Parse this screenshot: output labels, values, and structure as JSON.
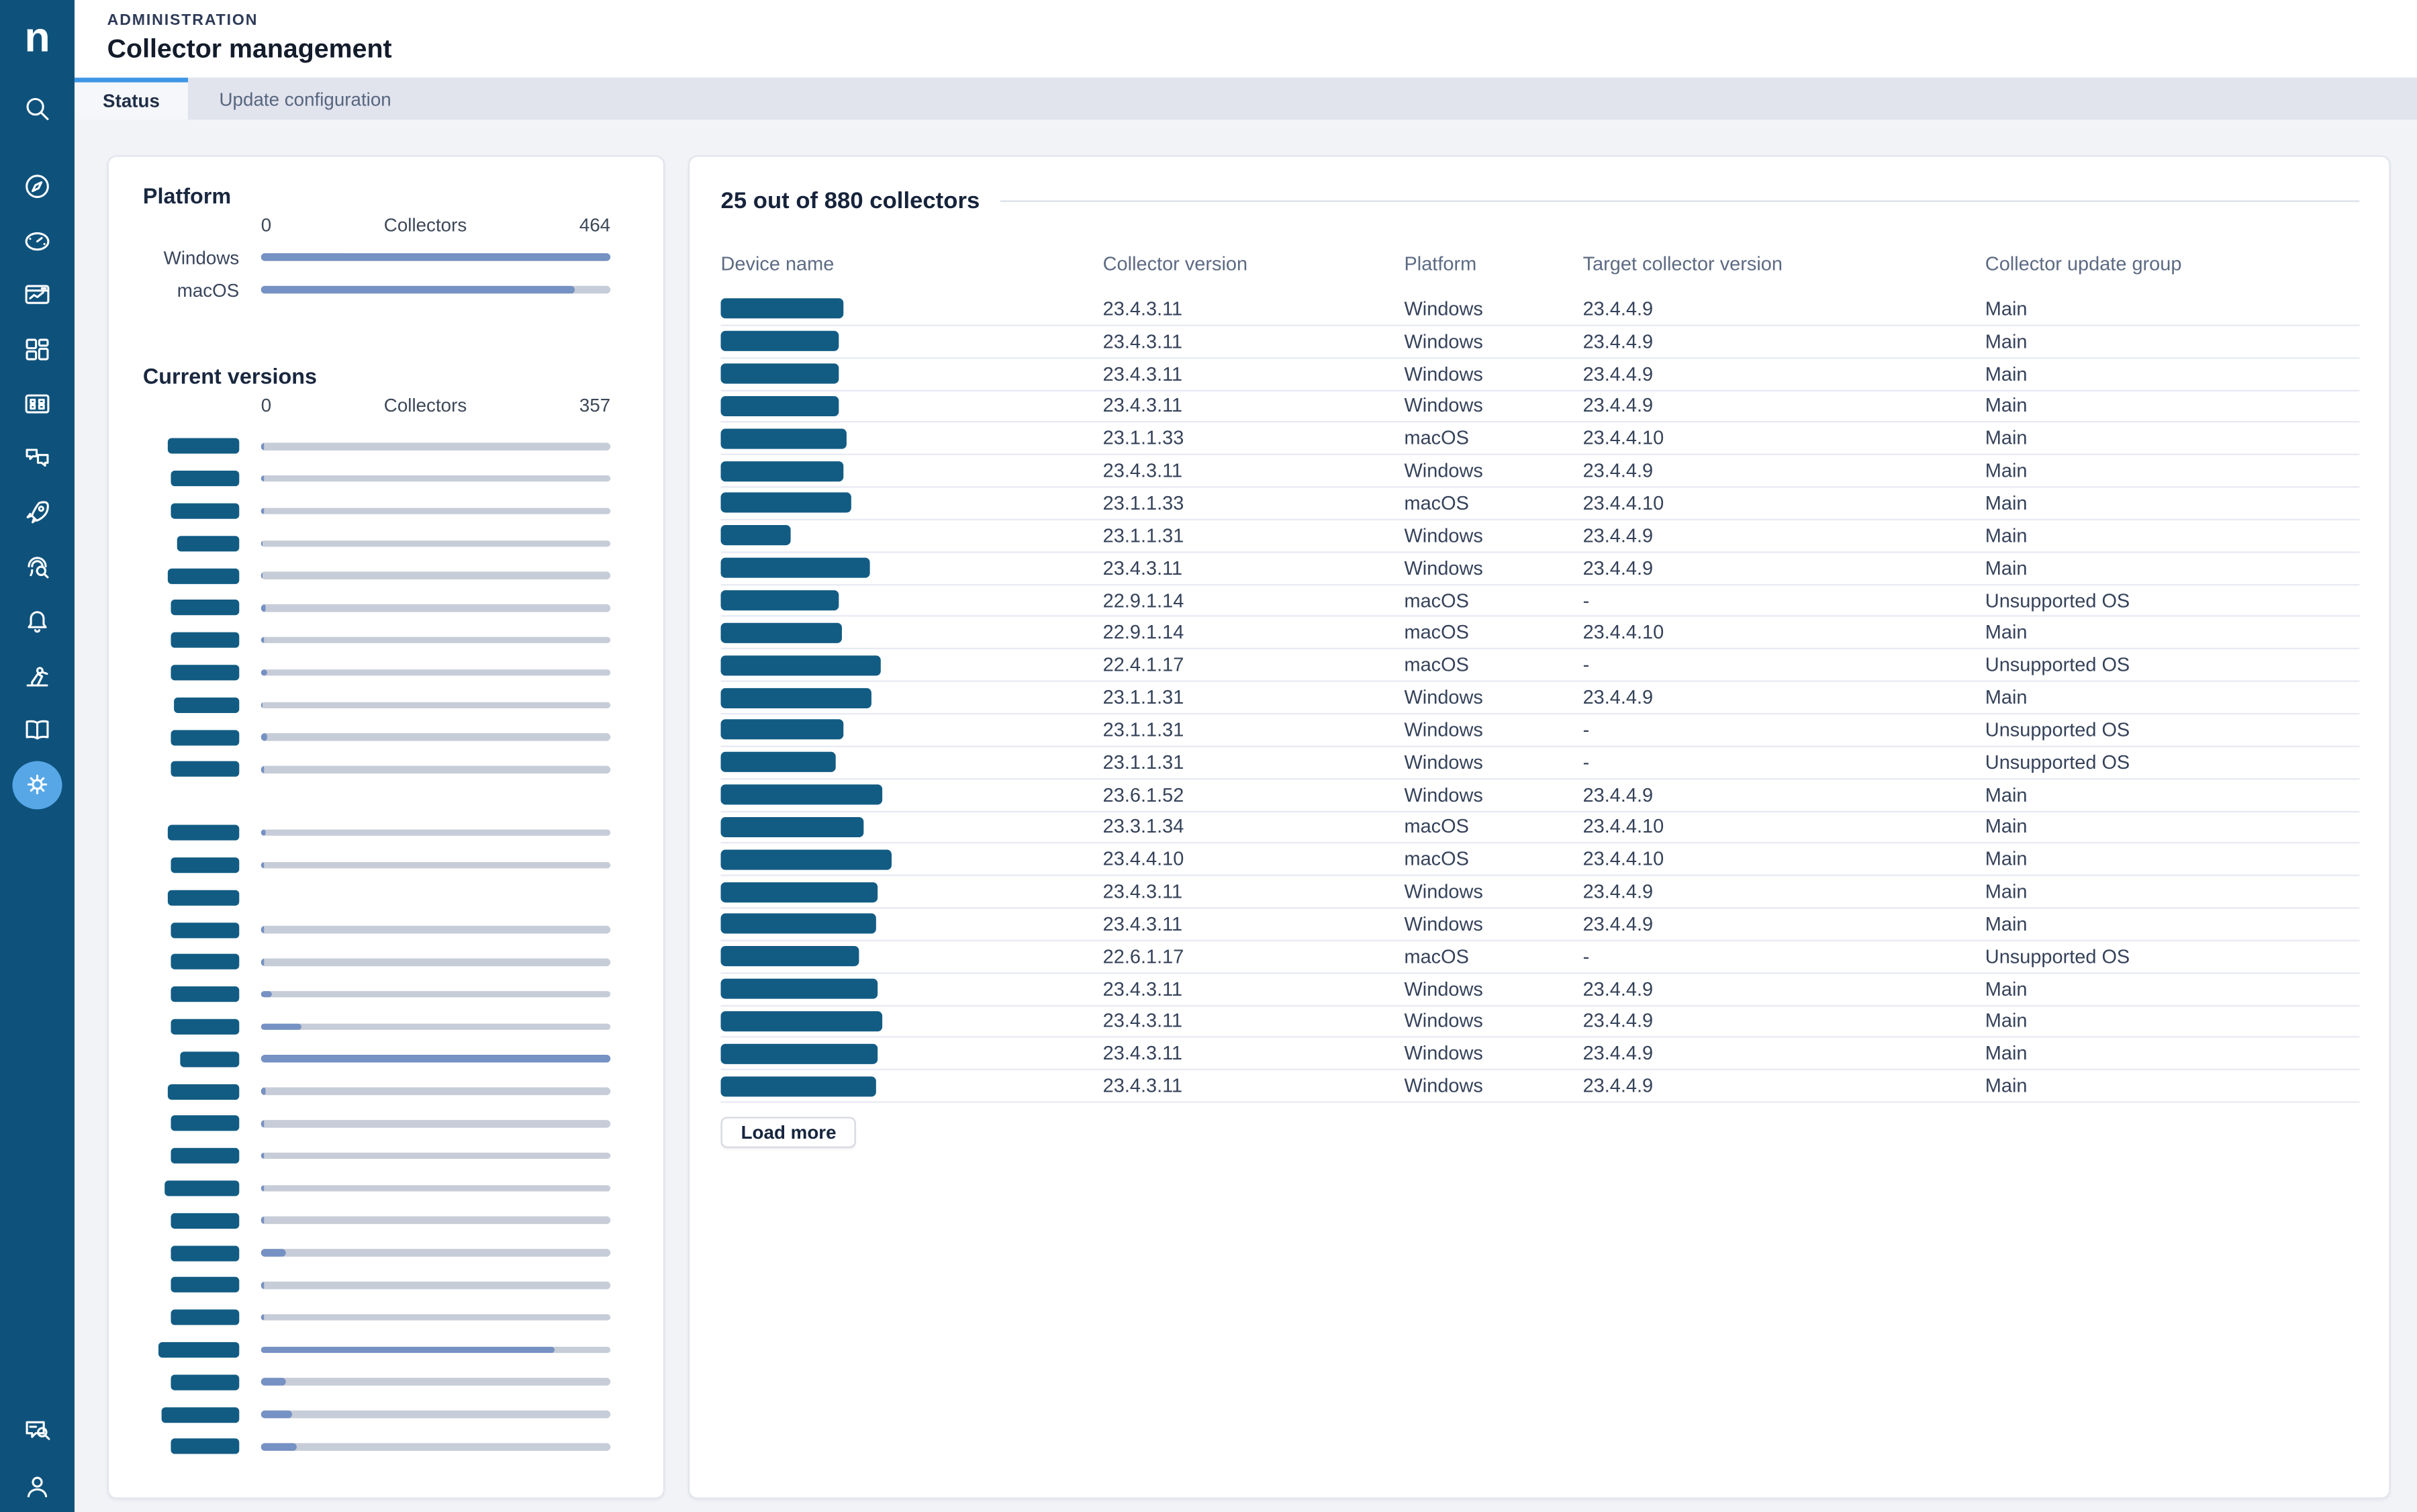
{
  "app": {
    "logo_letter": "n"
  },
  "page": {
    "eyebrow": "ADMINISTRATION",
    "title": "Collector management"
  },
  "tabs": {
    "status": "Status",
    "update_configuration": "Update configuration"
  },
  "sidebar": {
    "icons": [
      "search",
      "compass",
      "dashboard-gauge",
      "monitor-chart",
      "layout-grid",
      "app-catalog",
      "chat-bubbles",
      "rocket",
      "fingerprint-search",
      "bell",
      "robot-arm",
      "book-open",
      "settings-gear",
      "chat-search",
      "user"
    ]
  },
  "colors": {
    "sidebar_bg": "#0E527C",
    "active_icon_bg": "#57A7E7",
    "active_tab_accent": "#3E96E6",
    "bar_fill": "#7691C3",
    "bar_track": "#C7CDD8",
    "redaction_block": "#125C84"
  },
  "chart_data": [
    {
      "type": "bar",
      "title": "Platform",
      "xlabel": "Collectors",
      "axis_min": "0",
      "axis_max": "464",
      "max": 464,
      "rows": [
        {
          "label": "Windows",
          "value": 464
        },
        {
          "label": "macOS",
          "value": 416
        }
      ]
    },
    {
      "type": "bar",
      "title": "Current versions",
      "xlabel": "Collectors",
      "axis_min": "0",
      "axis_max": "357",
      "max": 357,
      "note": "version labels are redacted blocks; null value = no bar rendered",
      "groups": [
        {
          "rows": [
            {
              "value": 3,
              "label_width": 46
            },
            {
              "value": 3,
              "label_width": 44
            },
            {
              "value": 3,
              "label_width": 44
            },
            {
              "value": 2,
              "label_width": 40
            },
            {
              "value": 2,
              "label_width": 46
            },
            {
              "value": 5,
              "label_width": 44
            },
            {
              "value": 3,
              "label_width": 44
            },
            {
              "value": 6,
              "label_width": 44
            },
            {
              "value": 2,
              "label_width": 42
            },
            {
              "value": 7,
              "label_width": 44
            },
            {
              "value": 3,
              "label_width": 44
            }
          ]
        },
        {
          "rows": [
            {
              "value": 5,
              "label_width": 46
            },
            {
              "value": 3,
              "label_width": 44
            },
            {
              "value": null,
              "label_width": 46
            },
            {
              "value": 3,
              "label_width": 44
            },
            {
              "value": 3,
              "label_width": 44
            },
            {
              "value": 11,
              "label_width": 44
            },
            {
              "value": 41,
              "label_width": 44
            },
            {
              "value": 357,
              "label_width": 38
            },
            {
              "value": 5,
              "label_width": 46
            },
            {
              "value": 3,
              "label_width": 44
            },
            {
              "value": 3,
              "label_width": 44
            },
            {
              "value": 3,
              "label_width": 48
            },
            {
              "value": 3,
              "label_width": 44
            },
            {
              "value": 25,
              "label_width": 44
            },
            {
              "value": 3,
              "label_width": 44
            },
            {
              "value": 3,
              "label_width": 44
            },
            {
              "value": 300,
              "label_width": 52
            },
            {
              "value": 25,
              "label_width": 44
            },
            {
              "value": 32,
              "label_width": 50
            },
            {
              "value": 36,
              "label_width": 44
            }
          ]
        }
      ]
    }
  ],
  "table": {
    "title": "25 out of 880 collectors",
    "columns": [
      "Device name",
      "Collector version",
      "Platform",
      "Target collector version",
      "Collector update group"
    ],
    "load_more": "Load more",
    "rows": [
      {
        "device_redacted_width": 79,
        "collector_version": "23.4.3.11",
        "platform": "Windows",
        "target_version": "23.4.4.9",
        "update_group": "Main"
      },
      {
        "device_redacted_width": 76,
        "collector_version": "23.4.3.11",
        "platform": "Windows",
        "target_version": "23.4.4.9",
        "update_group": "Main"
      },
      {
        "device_redacted_width": 76,
        "collector_version": "23.4.3.11",
        "platform": "Windows",
        "target_version": "23.4.4.9",
        "update_group": "Main"
      },
      {
        "device_redacted_width": 76,
        "collector_version": "23.4.3.11",
        "platform": "Windows",
        "target_version": "23.4.4.9",
        "update_group": "Main"
      },
      {
        "device_redacted_width": 81,
        "collector_version": "23.1.1.33",
        "platform": "macOS",
        "target_version": "23.4.4.10",
        "update_group": "Main"
      },
      {
        "device_redacted_width": 79,
        "collector_version": "23.4.3.11",
        "platform": "Windows",
        "target_version": "23.4.4.9",
        "update_group": "Main"
      },
      {
        "device_redacted_width": 84,
        "collector_version": "23.1.1.33",
        "platform": "macOS",
        "target_version": "23.4.4.10",
        "update_group": "Main"
      },
      {
        "device_redacted_width": 45,
        "collector_version": "23.1.1.31",
        "platform": "Windows",
        "target_version": "23.4.4.9",
        "update_group": "Main"
      },
      {
        "device_redacted_width": 96,
        "collector_version": "23.4.3.11",
        "platform": "Windows",
        "target_version": "23.4.4.9",
        "update_group": "Main"
      },
      {
        "device_redacted_width": 76,
        "collector_version": "22.9.1.14",
        "platform": "macOS",
        "target_version": "-",
        "update_group": "Unsupported OS"
      },
      {
        "device_redacted_width": 78,
        "collector_version": "22.9.1.14",
        "platform": "macOS",
        "target_version": "23.4.4.10",
        "update_group": "Main"
      },
      {
        "device_redacted_width": 103,
        "collector_version": "22.4.1.17",
        "platform": "macOS",
        "target_version": "-",
        "update_group": "Unsupported OS"
      },
      {
        "device_redacted_width": 97,
        "collector_version": "23.1.1.31",
        "platform": "Windows",
        "target_version": "23.4.4.9",
        "update_group": "Main"
      },
      {
        "device_redacted_width": 79,
        "collector_version": "23.1.1.31",
        "platform": "Windows",
        "target_version": "-",
        "update_group": "Unsupported OS"
      },
      {
        "device_redacted_width": 74,
        "collector_version": "23.1.1.31",
        "platform": "Windows",
        "target_version": "-",
        "update_group": "Unsupported OS"
      },
      {
        "device_redacted_width": 104,
        "collector_version": "23.6.1.52",
        "platform": "Windows",
        "target_version": "23.4.4.9",
        "update_group": "Main"
      },
      {
        "device_redacted_width": 92,
        "collector_version": "23.3.1.34",
        "platform": "macOS",
        "target_version": "23.4.4.10",
        "update_group": "Main"
      },
      {
        "device_redacted_width": 110,
        "collector_version": "23.4.4.10",
        "platform": "macOS",
        "target_version": "23.4.4.10",
        "update_group": "Main"
      },
      {
        "device_redacted_width": 101,
        "collector_version": "23.4.3.11",
        "platform": "Windows",
        "target_version": "23.4.4.9",
        "update_group": "Main"
      },
      {
        "device_redacted_width": 100,
        "collector_version": "23.4.3.11",
        "platform": "Windows",
        "target_version": "23.4.4.9",
        "update_group": "Main"
      },
      {
        "device_redacted_width": 89,
        "collector_version": "22.6.1.17",
        "platform": "macOS",
        "target_version": "-",
        "update_group": "Unsupported OS"
      },
      {
        "device_redacted_width": 101,
        "collector_version": "23.4.3.11",
        "platform": "Windows",
        "target_version": "23.4.4.9",
        "update_group": "Main"
      },
      {
        "device_redacted_width": 104,
        "collector_version": "23.4.3.11",
        "platform": "Windows",
        "target_version": "23.4.4.9",
        "update_group": "Main"
      },
      {
        "device_redacted_width": 101,
        "collector_version": "23.4.3.11",
        "platform": "Windows",
        "target_version": "23.4.4.9",
        "update_group": "Main"
      },
      {
        "device_redacted_width": 100,
        "collector_version": "23.4.3.11",
        "platform": "Windows",
        "target_version": "23.4.4.9",
        "update_group": "Main"
      }
    ]
  }
}
